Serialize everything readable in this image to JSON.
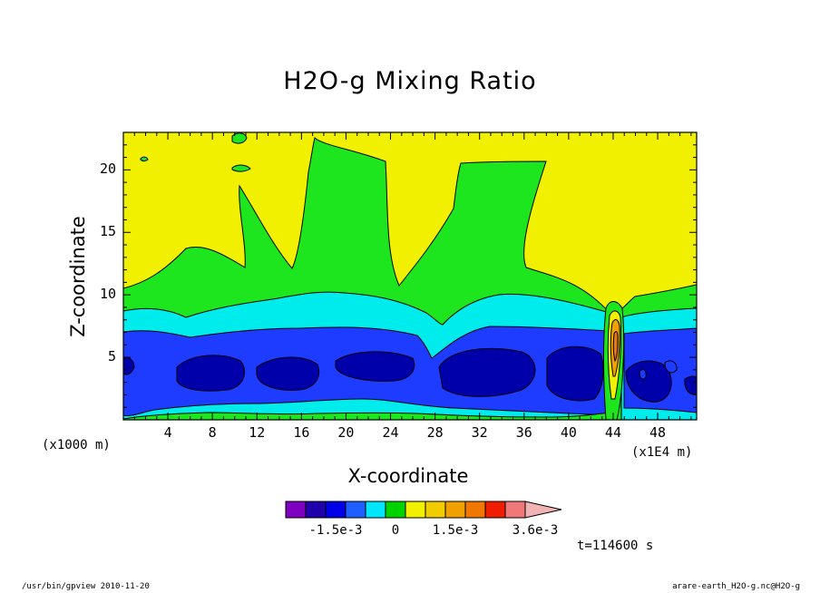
{
  "chart_data": {
    "type": "contour",
    "title": "H2O-g Mixing Ratio",
    "xlabel": "X-coordinate",
    "ylabel": "Z-coordinate",
    "x_unit_label": "(x1000 m)",
    "x_scale_label": "(x1E4 m)",
    "x_ticks": [
      "4",
      "8",
      "12",
      "16",
      "20",
      "24",
      "28",
      "32",
      "36",
      "40",
      "44",
      "48"
    ],
    "y_ticks": [
      "5",
      "10",
      "15",
      "20"
    ],
    "xlim": [
      0,
      51.5
    ],
    "ylim": [
      0,
      23
    ],
    "levels": [
      "-2.1e-3",
      "-1.8e-3",
      "-1.5e-3",
      "-1.2e-3",
      "-9e-4",
      "-6e-4",
      "-3e-4",
      "0",
      "3e-4",
      "6e-4",
      "9e-4",
      "1.2e-3",
      "1.5e-3",
      "1.8e-3",
      "2.1e-3",
      "2.4e-3",
      "2.7e-3",
      "3.0e-3",
      "3.3e-3",
      "3.6e-3"
    ],
    "colorbar_labels": [
      "-1.5e-3",
      "0",
      "1.5e-3",
      "3.6e-3"
    ],
    "colorbar_colors": [
      "#7f00bf",
      "#1f00aa",
      "#0000e6",
      "#1f5fff",
      "#00e6ff",
      "#00d200",
      "#f0f000",
      "#f0cc00",
      "#f0a000",
      "#f07800",
      "#f01e00",
      "#f07878",
      "#f0b4b4"
    ],
    "colors": {
      "dark_blue": "#0000aa",
      "blue": "#1e3cff",
      "cyan": "#00ebeb",
      "green": "#1ee61e",
      "yellow": "#f0f000",
      "orange": "#f0a000",
      "dark_orange": "#e6781e"
    }
  },
  "footer": {
    "left": "/usr/bin/gpview   2010-11-20",
    "right": "arare-earth_H2O-g.nc@H2O-g"
  },
  "time_label": "t=114600 s"
}
